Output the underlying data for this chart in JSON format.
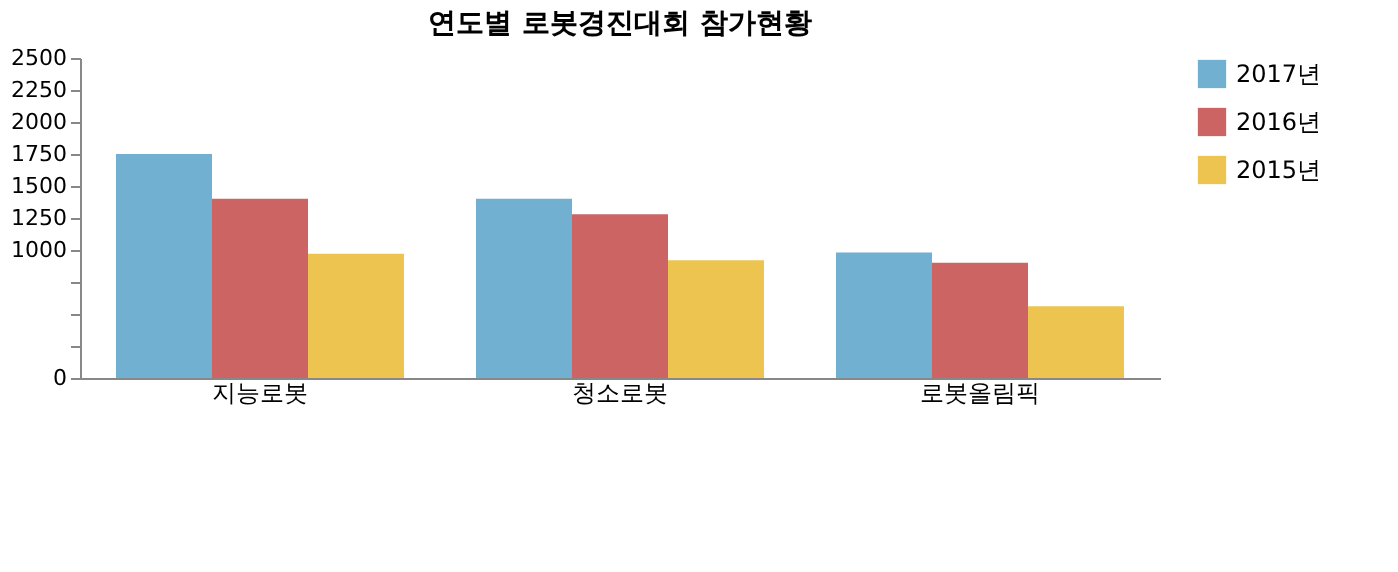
{
  "chart_data": {
    "type": "bar",
    "title": "연도별 로봇경진대회 참가현황",
    "categories": [
      "지능로봇",
      "청소로봇",
      "로봇올림픽"
    ],
    "series": [
      {
        "name": "2017년",
        "color": "#72b0d2",
        "values": [
          1750,
          1400,
          980
        ]
      },
      {
        "name": "2016년",
        "color": "#cd6464",
        "values": [
          1400,
          1280,
          900
        ]
      },
      {
        "name": "2015년",
        "color": "#ecc44f",
        "values": [
          970,
          920,
          560
        ]
      }
    ],
    "ylim": [
      0,
      2500
    ],
    "yticks": [
      0,
      {
        "value": 250,
        "label": null
      },
      {
        "value": 500,
        "label": null
      },
      {
        "value": 750,
        "label": null
      },
      1000,
      1250,
      1500,
      1750,
      2000,
      2250,
      2500
    ],
    "grid": false,
    "legend": "right"
  }
}
